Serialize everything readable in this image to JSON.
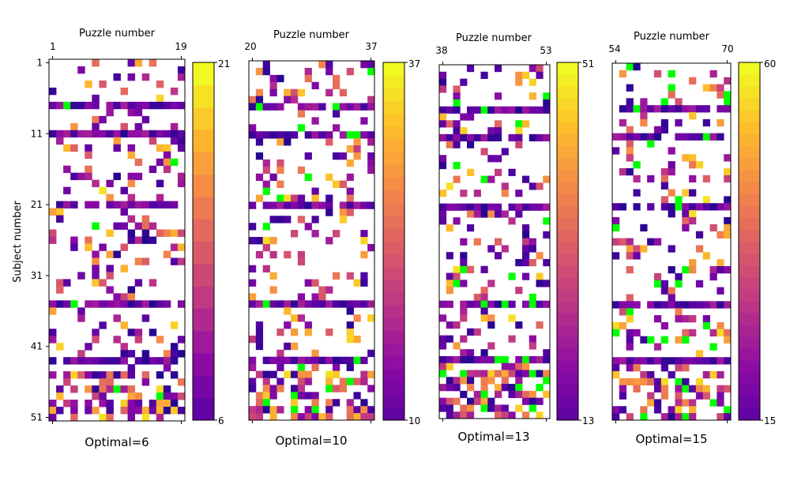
{
  "figure": {
    "ylabel": "Subject number",
    "top_xlabel": "Puzzle number",
    "subject_ticks": [
      "1",
      "11",
      "21",
      "31",
      "41",
      "51"
    ],
    "optimal_color": "#00ff00",
    "empty_color": "#ffffff",
    "colormap": "plasma"
  },
  "chart_data": [
    {
      "type": "heatmap",
      "title": "Optimal=6",
      "xlabel": "Puzzle number",
      "ylabel": "Subject number",
      "puzzle_range": [
        1,
        19
      ],
      "x_tick_labels": [
        "1",
        "19"
      ],
      "subjects": 51,
      "optimal": 6,
      "colorbar": {
        "min": 6,
        "max": 21,
        "tick_labels": [
          "6",
          "21"
        ]
      }
    },
    {
      "type": "heatmap",
      "title": "Optimal=10",
      "xlabel": "Puzzle number",
      "puzzle_range": [
        20,
        37
      ],
      "x_tick_labels": [
        "20",
        "37"
      ],
      "subjects": 51,
      "optimal": 10,
      "colorbar": {
        "min": 10,
        "max": 37,
        "tick_labels": [
          "10",
          "37"
        ]
      }
    },
    {
      "type": "heatmap",
      "title": "Optimal=13",
      "xlabel": "Puzzle number",
      "puzzle_range": [
        38,
        53
      ],
      "x_tick_labels": [
        "38",
        "53"
      ],
      "subjects": 51,
      "optimal": 13,
      "colorbar": {
        "min": 13,
        "max": 51,
        "tick_labels": [
          "13",
          "51"
        ]
      }
    },
    {
      "type": "heatmap",
      "title": "Optimal=15",
      "xlabel": "Puzzle number",
      "puzzle_range": [
        54,
        70
      ],
      "x_tick_labels": [
        "54",
        "70"
      ],
      "subjects": 51,
      "optimal": 15,
      "colorbar": {
        "min": 15,
        "max": 60,
        "tick_labels": [
          "15",
          "60"
        ]
      }
    }
  ]
}
